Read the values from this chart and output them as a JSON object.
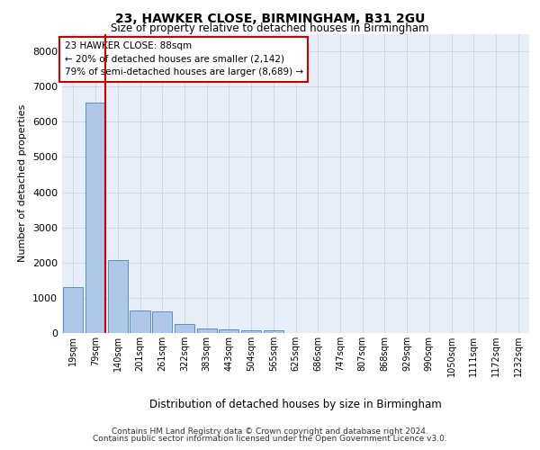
{
  "title1": "23, HAWKER CLOSE, BIRMINGHAM, B31 2GU",
  "title2": "Size of property relative to detached houses in Birmingham",
  "xlabel": "Distribution of detached houses by size in Birmingham",
  "ylabel": "Number of detached properties",
  "categories": [
    "19sqm",
    "79sqm",
    "140sqm",
    "201sqm",
    "261sqm",
    "322sqm",
    "383sqm",
    "443sqm",
    "504sqm",
    "565sqm",
    "625sqm",
    "686sqm",
    "747sqm",
    "807sqm",
    "868sqm",
    "929sqm",
    "990sqm",
    "1050sqm",
    "1111sqm",
    "1172sqm",
    "1232sqm"
  ],
  "bar_heights": [
    1300,
    6550,
    2080,
    650,
    620,
    260,
    140,
    110,
    70,
    70,
    0,
    0,
    0,
    0,
    0,
    0,
    0,
    0,
    0,
    0,
    0
  ],
  "bar_color": "#aec6e8",
  "bar_edge_color": "#5a8fc2",
  "grid_color": "#d0d8e8",
  "bg_color": "#e8eef8",
  "property_label": "23 HAWKER CLOSE: 88sqm",
  "annotation_line1": "← 20% of detached houses are smaller (2,142)",
  "annotation_line2": "79% of semi-detached houses are larger (8,689) →",
  "annotation_box_color": "#ffffff",
  "annotation_box_edge": "#cc0000",
  "vline_color": "#cc0000",
  "vline_x": 1.45,
  "ylim": [
    0,
    8500
  ],
  "yticks": [
    0,
    1000,
    2000,
    3000,
    4000,
    5000,
    6000,
    7000,
    8000
  ],
  "footer1": "Contains HM Land Registry data © Crown copyright and database right 2024.",
  "footer2": "Contains public sector information licensed under the Open Government Licence v3.0."
}
